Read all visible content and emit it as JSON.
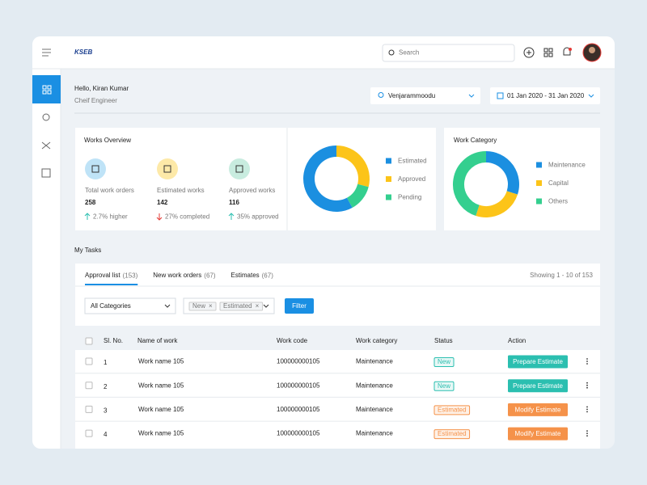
{
  "header": {
    "logo": "KSEB",
    "search_placeholder": "Search"
  },
  "greeting": {
    "title": "Hello, Kiran Kumar",
    "subtitle": "Cheif Engineer"
  },
  "filters": {
    "location": "Venjarammoodu",
    "date_range": "01 Jan 2020 - 31 Jan 2020"
  },
  "works_overview": {
    "title": "Works Overview",
    "stats": [
      {
        "label": "Total work orders",
        "value": 258,
        "change": "2.7% higher",
        "trend": "up"
      },
      {
        "label": "Estimated works",
        "value": 142,
        "change": "27% completed",
        "trend": "down"
      },
      {
        "label": "Approved works",
        "value": 116,
        "change": "35% approved",
        "trend": "up"
      }
    ],
    "chart": {
      "type": "pie",
      "categories": [
        "Estimated",
        "Approved",
        "Pending"
      ],
      "values": [
        58,
        29,
        13
      ],
      "colors": [
        "#1b8fe0",
        "#fcc419",
        "#34cf8f"
      ]
    }
  },
  "work_category": {
    "title": "Work Category",
    "chart": {
      "type": "pie",
      "categories": [
        "Maintenance",
        "Capital",
        "Others"
      ],
      "values": [
        30,
        25,
        45
      ],
      "colors": [
        "#1b8fe0",
        "#fcc419",
        "#34cf8f"
      ]
    }
  },
  "tasks": {
    "title": "My Tasks",
    "tabs": [
      {
        "label": "Approval list",
        "count": "(153)"
      },
      {
        "label": "New work orders",
        "count": "(67)"
      },
      {
        "label": "Estimates",
        "count": "(67)"
      }
    ],
    "showing": "Showing 1 - 10 of 153",
    "category_select": "All Categories",
    "chips": [
      "New",
      "Estimated"
    ],
    "filter_button": "Filter",
    "columns": [
      "Sl. No.",
      "Name of work",
      "Work code",
      "Work category",
      "Status",
      "Action"
    ],
    "rows": [
      [
        1,
        "Work name 105",
        "100000000105",
        "Maintenance",
        "New",
        "Prepare Estimate"
      ],
      [
        2,
        "Work name 105",
        "100000000105",
        "Maintenance",
        "New",
        "Prepare Estimate"
      ],
      [
        3,
        "Work name 105",
        "100000000105",
        "Maintenance",
        "Estimated",
        "Modify Estimate"
      ],
      [
        4,
        "Work name 105",
        "100000000105",
        "Maintenance",
        "Estimated",
        "Modify Estimate"
      ]
    ]
  }
}
